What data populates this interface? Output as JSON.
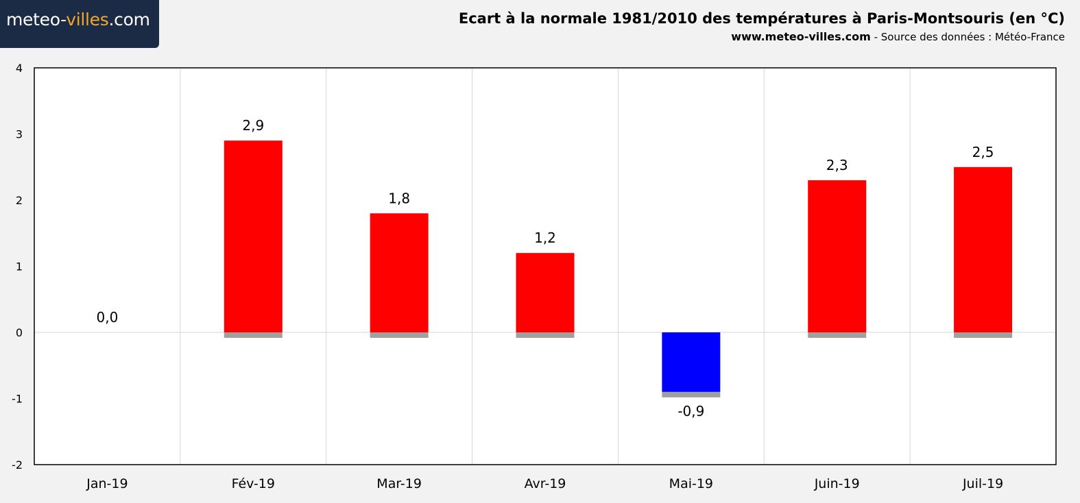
{
  "header": {
    "logo_main": "meteo-",
    "logo_accent": "villes",
    "logo_suffix": ".com",
    "title": "Ecart à la normale 1981/2010 des températures à Paris-Montsouris (en °C)",
    "site": "www.meteo-villes.com",
    "source": " - Source des données : Météo-France"
  },
  "colors": {
    "positive": "#ff0000",
    "negative": "#0000ff",
    "baseline_shadow": "#a0a0a0",
    "logo_bg": "#1c2b45",
    "logo_accent": "#f5a623"
  },
  "chart_data": {
    "type": "bar",
    "categories": [
      "Jan-19",
      "Fév-19",
      "Mar-19",
      "Avr-19",
      "Mai-19",
      "Juin-19",
      "Juil-19"
    ],
    "values": [
      0.0,
      2.9,
      1.8,
      1.2,
      -0.9,
      2.3,
      2.5
    ],
    "data_labels": [
      "0,0",
      "2,9",
      "1,8",
      "1,2",
      "-0,9",
      "2,3",
      "2,5"
    ],
    "ylim": [
      -2,
      4
    ],
    "yticks": [
      -2,
      -1,
      0,
      1,
      2,
      3,
      4
    ],
    "ytick_labels": [
      "-2",
      "-1",
      "0",
      "1",
      "2",
      "3",
      "4"
    ],
    "xlabel": "",
    "ylabel": "",
    "grid": true,
    "legend": "none"
  }
}
